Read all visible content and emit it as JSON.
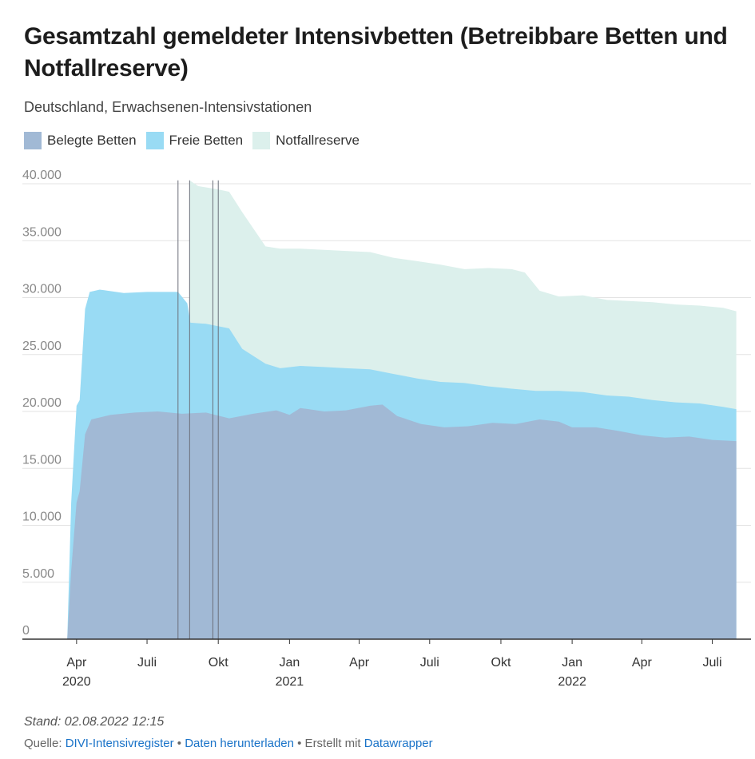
{
  "title": "Gesamtzahl gemeldeter Intensivbetten (Betreibbare Betten und Notfallreserve)",
  "subtitle": "Deutschland, Erwachsenen-Intensivstationen",
  "legend": [
    {
      "label": "Belegte Betten",
      "color": "#a1b9d5"
    },
    {
      "label": "Freie Betten",
      "color": "#99dbf4"
    },
    {
      "label": "Notfallreserve",
      "color": "#dcf0ec"
    }
  ],
  "footer": {
    "stand": "Stand: 02.08.2022 12:15",
    "source_prefix": "Quelle:",
    "source_link": "DIVI-Intensivregister",
    "sep1": "•",
    "download_link": "Daten herunterladen",
    "sep2": "• Erstellt mit",
    "datawrapper_link": "Datawrapper"
  },
  "chart_data": {
    "type": "area",
    "stacked": true,
    "ylim": [
      0,
      40000
    ],
    "yticks": [
      {
        "value": 0,
        "label": "0"
      },
      {
        "value": 5000,
        "label": "5.000"
      },
      {
        "value": 10000,
        "label": "10.000"
      },
      {
        "value": 15000,
        "label": "15.000"
      },
      {
        "value": 20000,
        "label": "20.000"
      },
      {
        "value": 25000,
        "label": "25.000"
      },
      {
        "value": 30000,
        "label": "30.000"
      },
      {
        "value": 35000,
        "label": "35.000"
      },
      {
        "value": 40000,
        "label": "40.000"
      }
    ],
    "xticks": [
      {
        "date": "2020-04-01",
        "label": "Apr",
        "year": "2020"
      },
      {
        "date": "2020-07-01",
        "label": "Juli",
        "year": ""
      },
      {
        "date": "2020-10-01",
        "label": "Okt",
        "year": ""
      },
      {
        "date": "2021-01-01",
        "label": "Jan",
        "year": "2021"
      },
      {
        "date": "2021-04-01",
        "label": "Apr",
        "year": ""
      },
      {
        "date": "2021-07-01",
        "label": "Juli",
        "year": ""
      },
      {
        "date": "2021-10-01",
        "label": "Okt",
        "year": ""
      },
      {
        "date": "2022-01-01",
        "label": "Jan",
        "year": "2022"
      },
      {
        "date": "2022-04-01",
        "label": "Apr",
        "year": ""
      },
      {
        "date": "2022-07-01",
        "label": "Juli",
        "year": ""
      }
    ],
    "x_range": [
      "2020-01-22",
      "2022-08-20"
    ],
    "vertical_markers": [
      "2020-08-10",
      "2020-08-25",
      "2020-09-24",
      "2020-10-01"
    ],
    "series": [
      {
        "name": "Belegte Betten",
        "color": "#a1b9d5",
        "points": [
          [
            "2020-03-20",
            0
          ],
          [
            "2020-03-25",
            6000
          ],
          [
            "2020-04-01",
            12000
          ],
          [
            "2020-04-05",
            13000
          ],
          [
            "2020-04-12",
            18000
          ],
          [
            "2020-04-20",
            19300
          ],
          [
            "2020-05-15",
            19700
          ],
          [
            "2020-06-15",
            19900
          ],
          [
            "2020-07-15",
            20000
          ],
          [
            "2020-08-15",
            19800
          ],
          [
            "2020-09-15",
            19900
          ],
          [
            "2020-10-15",
            19400
          ],
          [
            "2020-11-15",
            19800
          ],
          [
            "2020-12-15",
            20100
          ],
          [
            "2021-01-01",
            19700
          ],
          [
            "2021-01-15",
            20300
          ],
          [
            "2021-02-15",
            20000
          ],
          [
            "2021-03-15",
            20100
          ],
          [
            "2021-04-15",
            20500
          ],
          [
            "2021-05-01",
            20600
          ],
          [
            "2021-05-20",
            19600
          ],
          [
            "2021-06-20",
            18900
          ],
          [
            "2021-07-20",
            18600
          ],
          [
            "2021-08-20",
            18700
          ],
          [
            "2021-09-20",
            19000
          ],
          [
            "2021-10-20",
            18900
          ],
          [
            "2021-11-20",
            19300
          ],
          [
            "2021-12-15",
            19100
          ],
          [
            "2022-01-01",
            18600
          ],
          [
            "2022-02-01",
            18600
          ],
          [
            "2022-03-01",
            18300
          ],
          [
            "2022-04-01",
            17900
          ],
          [
            "2022-05-01",
            17700
          ],
          [
            "2022-06-01",
            17800
          ],
          [
            "2022-07-01",
            17500
          ],
          [
            "2022-08-01",
            17400
          ]
        ]
      },
      {
        "name": "Freie Betten",
        "color": "#99dbf4",
        "points": [
          [
            "2020-03-20",
            0
          ],
          [
            "2020-03-25",
            12000
          ],
          [
            "2020-04-01",
            20500
          ],
          [
            "2020-04-05",
            21000
          ],
          [
            "2020-04-12",
            29000
          ],
          [
            "2020-04-18",
            30500
          ],
          [
            "2020-05-01",
            30700
          ],
          [
            "2020-06-01",
            30400
          ],
          [
            "2020-07-01",
            30500
          ],
          [
            "2020-08-10",
            30500
          ],
          [
            "2020-08-22",
            29500
          ],
          [
            "2020-08-26",
            27800
          ],
          [
            "2020-09-15",
            27700
          ],
          [
            "2020-10-15",
            27300
          ],
          [
            "2020-11-01",
            25500
          ],
          [
            "2020-12-01",
            24200
          ],
          [
            "2020-12-20",
            23800
          ],
          [
            "2021-01-15",
            24000
          ],
          [
            "2021-02-15",
            23900
          ],
          [
            "2021-03-15",
            23800
          ],
          [
            "2021-04-15",
            23700
          ],
          [
            "2021-05-15",
            23300
          ],
          [
            "2021-06-15",
            22900
          ],
          [
            "2021-07-15",
            22600
          ],
          [
            "2021-08-15",
            22500
          ],
          [
            "2021-09-15",
            22200
          ],
          [
            "2021-10-15",
            22000
          ],
          [
            "2021-11-15",
            21800
          ],
          [
            "2021-12-15",
            21800
          ],
          [
            "2022-01-15",
            21700
          ],
          [
            "2022-02-15",
            21400
          ],
          [
            "2022-03-15",
            21300
          ],
          [
            "2022-04-15",
            21000
          ],
          [
            "2022-05-15",
            20800
          ],
          [
            "2022-06-15",
            20700
          ],
          [
            "2022-07-15",
            20400
          ],
          [
            "2022-08-01",
            20200
          ]
        ]
      },
      {
        "name": "Notfallreserve",
        "color": "#dcf0ec",
        "points": [
          [
            "2020-08-25",
            40300
          ],
          [
            "2020-09-05",
            39800
          ],
          [
            "2020-10-01",
            39500
          ],
          [
            "2020-10-15",
            39300
          ],
          [
            "2020-11-01",
            37500
          ],
          [
            "2020-11-20",
            35600
          ],
          [
            "2020-12-01",
            34500
          ],
          [
            "2020-12-20",
            34300
          ],
          [
            "2021-01-15",
            34300
          ],
          [
            "2021-02-15",
            34200
          ],
          [
            "2021-03-15",
            34100
          ],
          [
            "2021-04-15",
            34000
          ],
          [
            "2021-05-15",
            33500
          ],
          [
            "2021-06-15",
            33200
          ],
          [
            "2021-07-15",
            32900
          ],
          [
            "2021-08-15",
            32500
          ],
          [
            "2021-09-15",
            32600
          ],
          [
            "2021-10-15",
            32500
          ],
          [
            "2021-11-01",
            32200
          ],
          [
            "2021-11-20",
            30600
          ],
          [
            "2021-12-15",
            30100
          ],
          [
            "2022-01-15",
            30200
          ],
          [
            "2022-02-15",
            29800
          ],
          [
            "2022-03-15",
            29700
          ],
          [
            "2022-04-15",
            29600
          ],
          [
            "2022-05-15",
            29400
          ],
          [
            "2022-06-15",
            29300
          ],
          [
            "2022-07-15",
            29100
          ],
          [
            "2022-08-01",
            28800
          ]
        ]
      }
    ]
  }
}
